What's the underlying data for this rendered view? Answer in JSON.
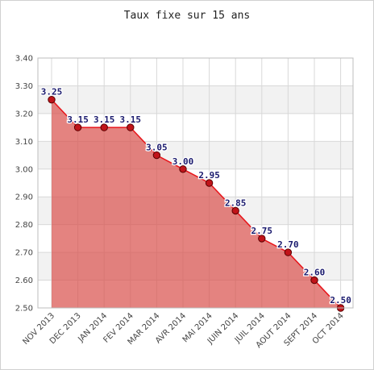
{
  "chart_data": {
    "type": "area",
    "title": "Taux fixe sur 15 ans",
    "xlabel": "",
    "ylabel": "",
    "categories": [
      "NOV 2013",
      "DEC 2013",
      "JAN 2014",
      "FEV 2014",
      "MAR 2014",
      "AVR 2014",
      "MAI 2014",
      "JUIN 2014",
      "JUIL 2014",
      "AOUT 2014",
      "SEPT 2014",
      "OCT 2014"
    ],
    "series": [
      {
        "values": [
          3.25,
          3.15,
          3.15,
          3.15,
          3.05,
          3.0,
          2.95,
          2.85,
          2.75,
          2.7,
          2.6,
          2.5
        ]
      }
    ],
    "data_labels": [
      "3.25",
      "3.15",
      "3.15",
      "3.15",
      "3.05",
      "3.00",
      "2.95",
      "2.85",
      "2.75",
      "2.70",
      "2.60",
      "2.50"
    ],
    "y_ticks": [
      "2.50",
      "2.60",
      "2.70",
      "2.80",
      "2.90",
      "3.00",
      "3.10",
      "3.20",
      "3.30",
      "3.40"
    ],
    "ylim": [
      2.5,
      3.4
    ],
    "grid": true,
    "legend": "none",
    "colors": {
      "fill": "#d9534f",
      "line": "#e8141a",
      "marker": "#c0141a",
      "band": "#f2f2f2",
      "label": "#1a1a6e"
    }
  }
}
